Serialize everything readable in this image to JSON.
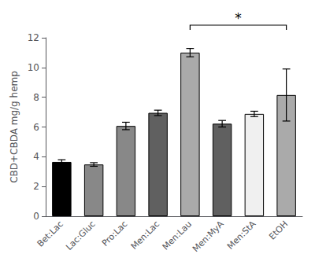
{
  "chart_data": {
    "type": "bar",
    "categories": [
      "Bet:Lac",
      "Lac:Gluc",
      "Pro:Lac",
      "Men:Lac",
      "Men:Lau",
      "Men:MyA",
      "Men:StA",
      "EtOH"
    ],
    "values": [
      3.65,
      3.48,
      6.07,
      6.95,
      11.0,
      6.22,
      6.88,
      8.15
    ],
    "errors": [
      0.15,
      0.12,
      0.25,
      0.18,
      0.28,
      0.22,
      0.18,
      1.75
    ],
    "colors": [
      "#000000",
      "#888888",
      "#888888",
      "#606060",
      "#aaaaaa",
      "#606060",
      "#f0f0f0",
      "#aaaaaa"
    ],
    "ylabel": "CBD+CBDA mg/g hemp",
    "ylim": [
      0,
      12
    ],
    "yticks": [
      0,
      2,
      4,
      6,
      8,
      10,
      12
    ],
    "grid": false,
    "annotations": [
      {
        "text": "*",
        "from": "Men:Lau",
        "to": "EtOH"
      }
    ]
  }
}
